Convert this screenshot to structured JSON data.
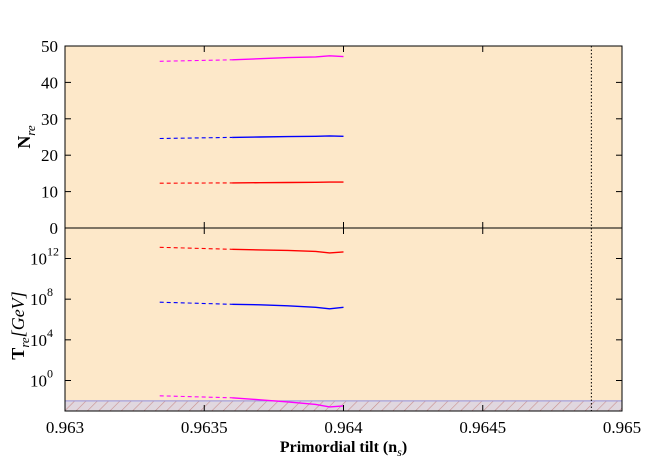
{
  "chart_data": [
    {
      "type": "line",
      "panel": "top",
      "ylabel": "N",
      "ylabel_sub": "re",
      "ylim": [
        0,
        50
      ],
      "yticks": [
        0,
        10,
        20,
        30,
        40,
        50
      ],
      "ytick_labels": [
        "0",
        "10",
        "20",
        "30",
        "40",
        "50"
      ],
      "xlim": [
        0.963,
        0.965
      ],
      "grid": false,
      "background": "#fde8c9",
      "series": [
        {
          "color": "#ff00ff",
          "dashed": {
            "x": [
              0.96334,
              0.9636
            ],
            "y": [
              45.8,
              46.2
            ]
          },
          "solid": {
            "x": [
              0.9636,
              0.9637,
              0.9638,
              0.9639,
              0.96395,
              0.964
            ],
            "y": [
              46.2,
              46.5,
              46.8,
              47.0,
              47.3,
              47.1
            ]
          }
        },
        {
          "color": "#0000ff",
          "dashed": {
            "x": [
              0.96334,
              0.9636
            ],
            "y": [
              24.6,
              24.9
            ]
          },
          "solid": {
            "x": [
              0.9636,
              0.9637,
              0.9638,
              0.9639,
              0.96395,
              0.964
            ],
            "y": [
              24.9,
              25.0,
              25.1,
              25.2,
              25.3,
              25.2
            ]
          }
        },
        {
          "color": "#ff0000",
          "dashed": {
            "x": [
              0.96334,
              0.9636
            ],
            "y": [
              12.3,
              12.4
            ]
          },
          "solid": {
            "x": [
              0.9636,
              0.9637,
              0.9638,
              0.9639,
              0.96395,
              0.964
            ],
            "y": [
              12.4,
              12.45,
              12.5,
              12.55,
              12.6,
              12.6
            ]
          }
        }
      ],
      "vline_dotted_x": 0.96489
    },
    {
      "type": "line",
      "panel": "bottom",
      "ylabel": "T",
      "ylabel_sub": "re",
      "ylabel_unit": "[GeV]",
      "yscale": "log10",
      "ylim": [
        -3,
        15
      ],
      "yticks": [
        0,
        4,
        8,
        12
      ],
      "ytick_labels": [
        "10",
        "10",
        "10",
        "10"
      ],
      "ytick_exponents": [
        "0",
        "4",
        "8",
        "12"
      ],
      "xlim": [
        0.963,
        0.965
      ],
      "xticks": [
        0.963,
        0.9635,
        0.964,
        0.9645,
        0.965
      ],
      "xtick_labels": [
        "0.963",
        "0.9635",
        "0.964",
        "0.9645",
        "0.965"
      ],
      "xlabel": "Primordial tilt (n",
      "xlabel_sub": "s",
      "xlabel_end": ")",
      "grid": false,
      "background": "#fde8c9",
      "excluded_band": {
        "ymax": -2.0,
        "fill": "#c8c8f0",
        "hatch": "#c89090"
      },
      "series": [
        {
          "color": "#ff0000",
          "dashed": {
            "x": [
              0.96334,
              0.9636
            ],
            "y": [
              13.1,
              12.9
            ]
          },
          "solid": {
            "x": [
              0.9636,
              0.9637,
              0.9638,
              0.9639,
              0.96395,
              0.964
            ],
            "y": [
              12.9,
              12.85,
              12.8,
              12.7,
              12.55,
              12.65
            ]
          }
        },
        {
          "color": "#0000ff",
          "dashed": {
            "x": [
              0.96334,
              0.9636
            ],
            "y": [
              7.7,
              7.5
            ]
          },
          "solid": {
            "x": [
              0.9636,
              0.9637,
              0.9638,
              0.9639,
              0.96395,
              0.964
            ],
            "y": [
              7.5,
              7.45,
              7.35,
              7.2,
              7.05,
              7.2
            ]
          }
        },
        {
          "color": "#ff00ff",
          "dashed": {
            "x": [
              0.96334,
              0.9636
            ],
            "y": [
              -1.5,
              -1.7
            ]
          },
          "solid": {
            "x": [
              0.9636,
              0.9637,
              0.9638,
              0.9639,
              0.96395,
              0.964
            ],
            "y": [
              -1.7,
              -1.9,
              -2.1,
              -2.35,
              -2.6,
              -2.5
            ]
          }
        }
      ],
      "vline_dotted_x": 0.96489
    }
  ]
}
